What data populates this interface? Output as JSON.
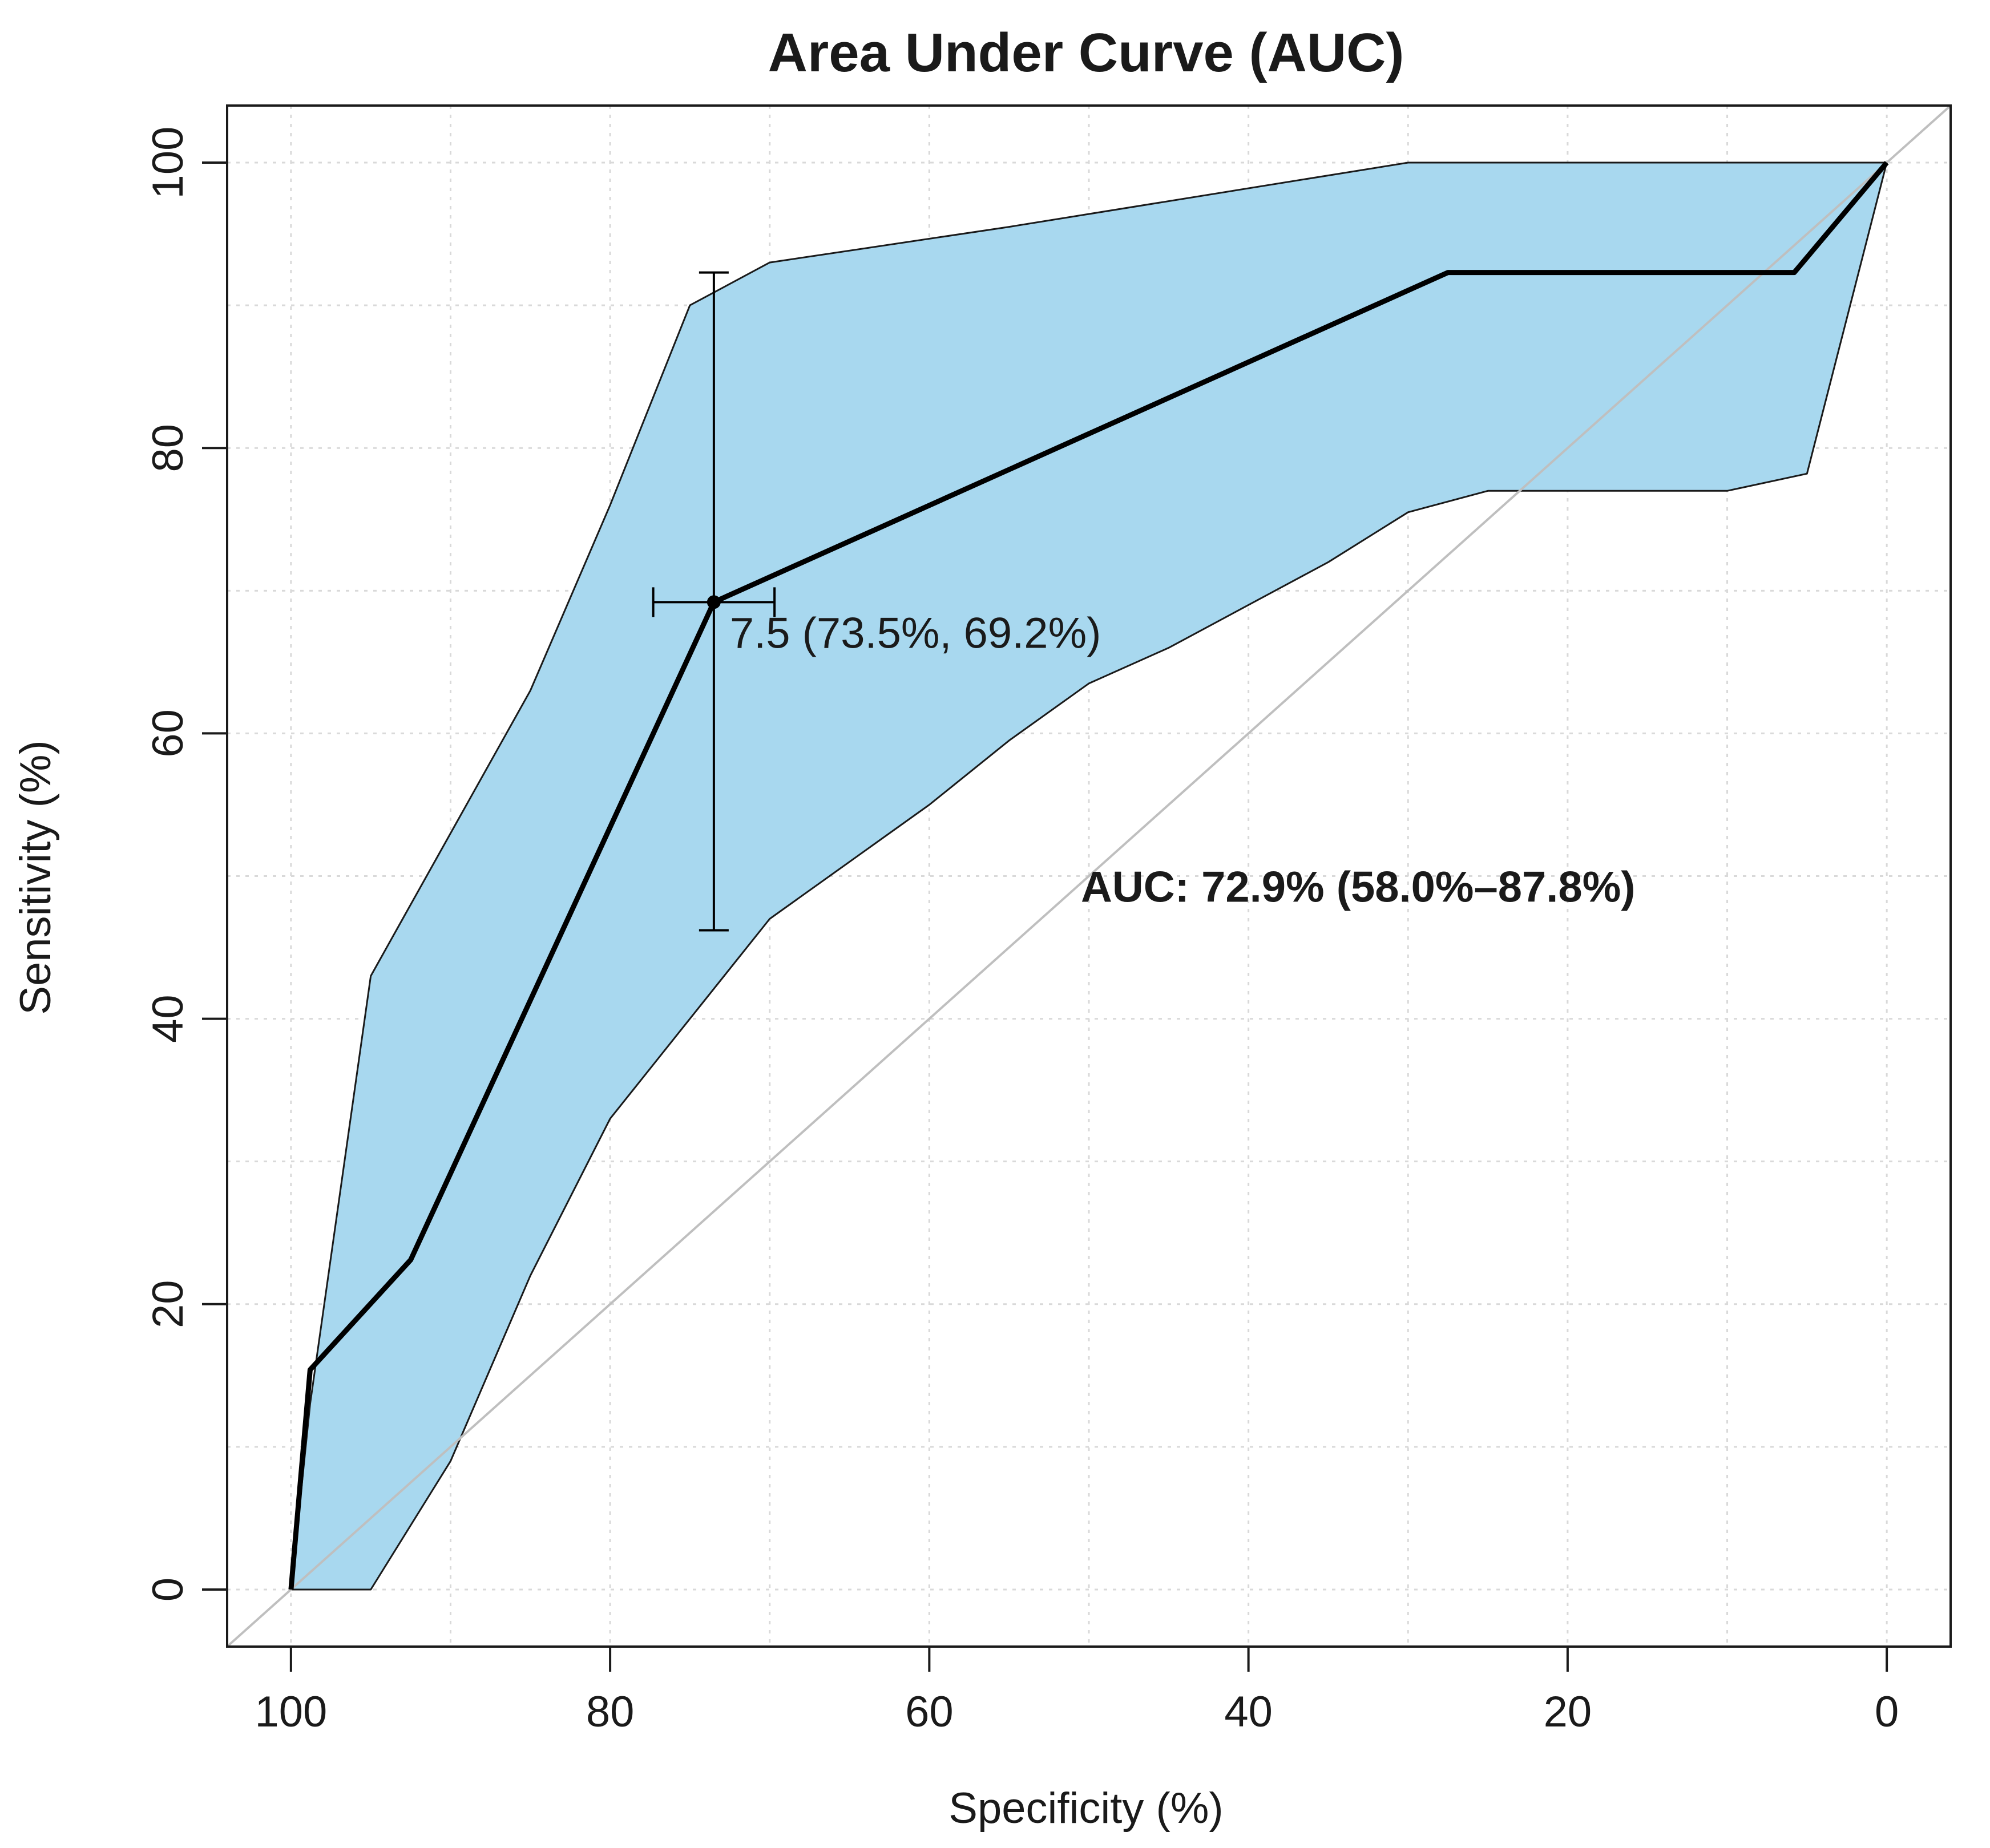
{
  "chart_data": {
    "type": "line",
    "title": "Area Under Curve (AUC)",
    "xlabel": "Specificity (%)",
    "ylabel": "Sensitivity (%)",
    "x_reversed": true,
    "xlim": [
      104,
      -4
    ],
    "ylim": [
      -4,
      104
    ],
    "grid": true,
    "x_ticks": [
      100,
      80,
      60,
      40,
      20,
      0
    ],
    "y_ticks": [
      0,
      20,
      40,
      60,
      80,
      100
    ],
    "x_tick_labels": [
      "100",
      "80",
      "60",
      "40",
      "20",
      "0"
    ],
    "y_tick_labels": [
      "0",
      "20",
      "40",
      "60",
      "80",
      "100"
    ],
    "roc_curve": {
      "x": [
        100,
        98.8,
        92.5,
        73.5,
        27.5,
        5.8,
        0
      ],
      "y": [
        0,
        15.4,
        23.1,
        69.2,
        92.3,
        92.3,
        100
      ]
    },
    "ci_band": {
      "upper": {
        "x": [
          100,
          98.8,
          95,
          93,
          85,
          80,
          75,
          70,
          55,
          30,
          0
        ],
        "y": [
          0,
          13,
          43,
          47,
          63,
          76,
          90,
          93,
          95.5,
          100,
          100
        ]
      },
      "lower": {
        "x": [
          100,
          95,
          90,
          85,
          80,
          75,
          70,
          60,
          55,
          50,
          45,
          35,
          30,
          25,
          10,
          5,
          0
        ],
        "y": [
          0,
          0,
          9,
          22,
          33,
          40,
          47,
          55,
          59.5,
          63.5,
          66,
          72,
          75.5,
          77,
          77,
          78.2,
          100
        ]
      },
      "fill": "#a8d8ef"
    },
    "threshold_point": {
      "x": 73.5,
      "y": 69.2,
      "label": "7.5 (73.5%, 69.2%)",
      "x_err": [
        77.3,
        69.7
      ],
      "y_err": [
        46.2,
        92.3
      ]
    },
    "diagonal": {
      "x": [
        104,
        -4
      ],
      "y": [
        -4,
        104
      ],
      "color": "#bfbfbf"
    },
    "auc_label": "AUC: 72.9% (58.0%–87.8%)",
    "auc_label_position": {
      "x": 50.5,
      "y": 48.2
    }
  }
}
